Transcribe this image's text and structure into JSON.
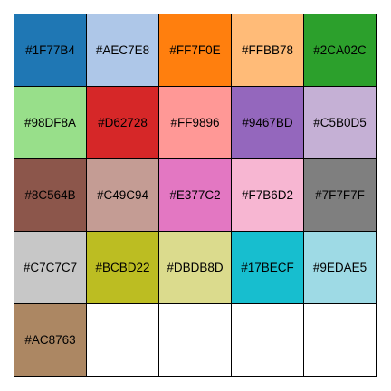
{
  "palette": {
    "swatches": [
      {
        "label": "#1F77B4",
        "color": "#1F77B4"
      },
      {
        "label": "#AEC7E8",
        "color": "#AEC7E8"
      },
      {
        "label": "#FF7F0E",
        "color": "#FF7F0E"
      },
      {
        "label": "#FFBB78",
        "color": "#FFBB78"
      },
      {
        "label": "#2CA02C",
        "color": "#2CA02C"
      },
      {
        "label": "#98DF8A",
        "color": "#98DF8A"
      },
      {
        "label": "#D62728",
        "color": "#D62728"
      },
      {
        "label": "#FF9896",
        "color": "#FF9896"
      },
      {
        "label": "#9467BD",
        "color": "#9467BD"
      },
      {
        "label": "#C5B0D5",
        "color": "#C5B0D5"
      },
      {
        "label": "#8C564B",
        "color": "#8C564B"
      },
      {
        "label": "#C49C94",
        "color": "#C49C94"
      },
      {
        "label": "#E377C2",
        "color": "#E377C2"
      },
      {
        "label": "#F7B6D2",
        "color": "#F7B6D2"
      },
      {
        "label": "#7F7F7F",
        "color": "#7F7F7F"
      },
      {
        "label": "#C7C7C7",
        "color": "#C7C7C7"
      },
      {
        "label": "#BCBD22",
        "color": "#BCBD22"
      },
      {
        "label": "#DBDB8D",
        "color": "#DBDB8D"
      },
      {
        "label": "#17BECF",
        "color": "#17BECF"
      },
      {
        "label": "#9EDAE5",
        "color": "#9EDAE5"
      },
      {
        "label": "#AC8763",
        "color": "#AC8763"
      },
      {
        "label": "",
        "color": "#FFFFFF"
      },
      {
        "label": "",
        "color": "#FFFFFF"
      },
      {
        "label": "",
        "color": "#FFFFFF"
      },
      {
        "label": "",
        "color": "#FFFFFF"
      }
    ]
  }
}
